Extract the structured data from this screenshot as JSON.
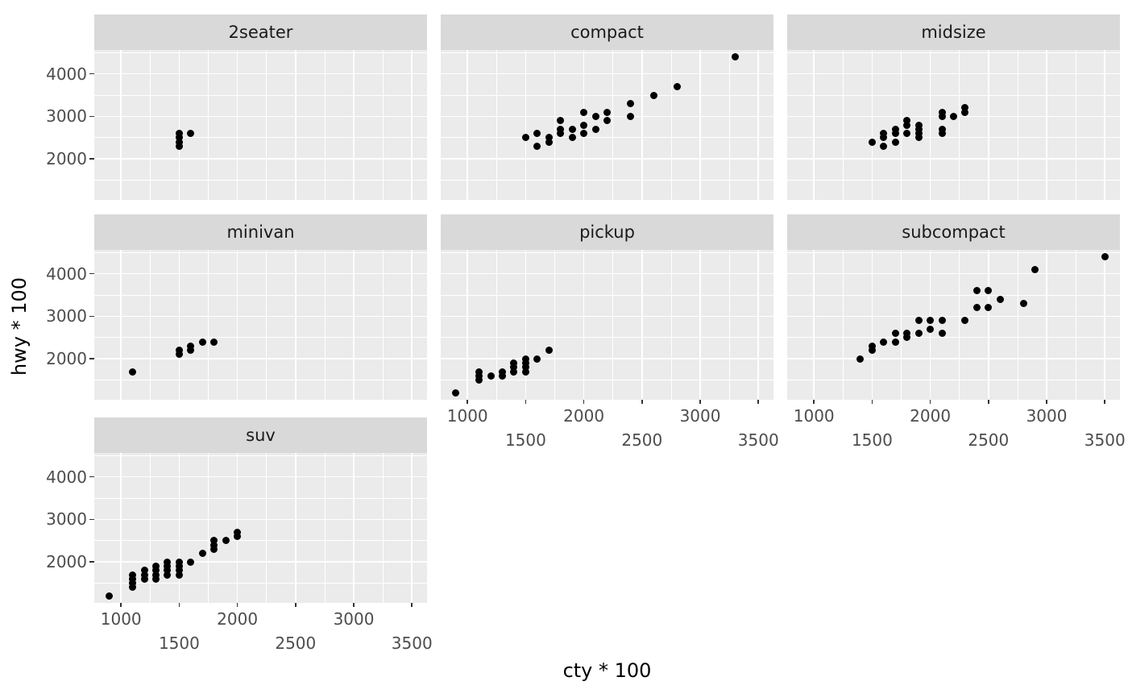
{
  "chart_data": {
    "type": "scatter",
    "title": "",
    "xlabel": "cty * 100",
    "ylabel": "hwy * 100",
    "x_ticks": [
      1000,
      1500,
      2000,
      2500,
      3000,
      3500
    ],
    "x_tick_row1": [
      1000,
      2000,
      3000
    ],
    "x_tick_row2": [
      1500,
      2500,
      3500
    ],
    "y_ticks": [
      2000,
      3000,
      4000
    ],
    "x_minor": [
      1250,
      1750,
      2250,
      2750,
      3250
    ],
    "y_minor": [
      1500,
      2500,
      3500,
      4500
    ],
    "xlim": [
      770,
      3630
    ],
    "ylim": [
      1040,
      4560
    ],
    "grid": true,
    "legend": "none",
    "colors": {
      "point": "#000000",
      "panel_bg": "#ebebeb",
      "strip_bg": "#d9d9d9",
      "grid_line": "#ffffff",
      "tick_mark": "#333333",
      "tick_label": "#4d4d4d",
      "strip_text": "#1a1a1a",
      "axis_title": "#000000"
    },
    "facets": [
      {
        "label": "2seater",
        "col": 0,
        "row": 0,
        "x_axis": false,
        "points": [
          [
            1500,
            2300
          ],
          [
            1500,
            2400
          ],
          [
            1500,
            2500
          ],
          [
            1500,
            2600
          ],
          [
            1600,
            2600
          ]
        ]
      },
      {
        "label": "compact",
        "col": 1,
        "row": 0,
        "x_axis": false,
        "points": [
          [
            1500,
            2500
          ],
          [
            1600,
            2300
          ],
          [
            1600,
            2600
          ],
          [
            1700,
            2400
          ],
          [
            1700,
            2500
          ],
          [
            1800,
            2600
          ],
          [
            1800,
            2700
          ],
          [
            1800,
            2900
          ],
          [
            1900,
            2500
          ],
          [
            1900,
            2700
          ],
          [
            2000,
            2600
          ],
          [
            2000,
            2800
          ],
          [
            2000,
            3100
          ],
          [
            2100,
            2700
          ],
          [
            2100,
            3000
          ],
          [
            2200,
            2900
          ],
          [
            2200,
            3100
          ],
          [
            2400,
            3000
          ],
          [
            2400,
            3300
          ],
          [
            2600,
            3500
          ],
          [
            2800,
            3700
          ],
          [
            3300,
            4400
          ]
        ]
      },
      {
        "label": "midsize",
        "col": 2,
        "row": 0,
        "x_axis": false,
        "points": [
          [
            1500,
            2400
          ],
          [
            1600,
            2300
          ],
          [
            1600,
            2500
          ],
          [
            1600,
            2600
          ],
          [
            1700,
            2400
          ],
          [
            1700,
            2600
          ],
          [
            1700,
            2700
          ],
          [
            1800,
            2600
          ],
          [
            1800,
            2800
          ],
          [
            1800,
            2900
          ],
          [
            1900,
            2500
          ],
          [
            1900,
            2600
          ],
          [
            1900,
            2700
          ],
          [
            1900,
            2800
          ],
          [
            2100,
            2600
          ],
          [
            2100,
            2700
          ],
          [
            2100,
            3000
          ],
          [
            2100,
            3100
          ],
          [
            2200,
            3000
          ],
          [
            2300,
            3100
          ],
          [
            2300,
            3200
          ]
        ]
      },
      {
        "label": "minivan",
        "col": 0,
        "row": 1,
        "x_axis": false,
        "points": [
          [
            1100,
            1700
          ],
          [
            1500,
            2100
          ],
          [
            1500,
            2200
          ],
          [
            1600,
            2200
          ],
          [
            1600,
            2300
          ],
          [
            1700,
            2400
          ],
          [
            1800,
            2400
          ]
        ]
      },
      {
        "label": "pickup",
        "col": 1,
        "row": 1,
        "x_axis": true,
        "points": [
          [
            900,
            1200
          ],
          [
            1100,
            1500
          ],
          [
            1100,
            1600
          ],
          [
            1100,
            1700
          ],
          [
            1200,
            1600
          ],
          [
            1300,
            1600
          ],
          [
            1300,
            1700
          ],
          [
            1400,
            1700
          ],
          [
            1400,
            1800
          ],
          [
            1400,
            1900
          ],
          [
            1500,
            1700
          ],
          [
            1500,
            1800
          ],
          [
            1500,
            1900
          ],
          [
            1500,
            2000
          ],
          [
            1600,
            2000
          ],
          [
            1700,
            2200
          ]
        ]
      },
      {
        "label": "subcompact",
        "col": 2,
        "row": 1,
        "x_axis": true,
        "points": [
          [
            1400,
            2000
          ],
          [
            1500,
            2200
          ],
          [
            1500,
            2300
          ],
          [
            1600,
            2400
          ],
          [
            1700,
            2400
          ],
          [
            1700,
            2600
          ],
          [
            1800,
            2500
          ],
          [
            1800,
            2600
          ],
          [
            1900,
            2600
          ],
          [
            1900,
            2900
          ],
          [
            2000,
            2700
          ],
          [
            2000,
            2900
          ],
          [
            2100,
            2600
          ],
          [
            2100,
            2900
          ],
          [
            2300,
            2900
          ],
          [
            2400,
            3200
          ],
          [
            2400,
            3600
          ],
          [
            2500,
            3200
          ],
          [
            2500,
            3600
          ],
          [
            2600,
            3400
          ],
          [
            2800,
            3300
          ],
          [
            2900,
            4100
          ],
          [
            3500,
            4400
          ]
        ]
      },
      {
        "label": "suv",
        "col": 0,
        "row": 2,
        "x_axis": true,
        "points": [
          [
            900,
            1200
          ],
          [
            1100,
            1400
          ],
          [
            1100,
            1500
          ],
          [
            1100,
            1600
          ],
          [
            1100,
            1700
          ],
          [
            1200,
            1600
          ],
          [
            1200,
            1700
          ],
          [
            1200,
            1800
          ],
          [
            1300,
            1600
          ],
          [
            1300,
            1700
          ],
          [
            1300,
            1800
          ],
          [
            1300,
            1900
          ],
          [
            1400,
            1700
          ],
          [
            1400,
            1800
          ],
          [
            1400,
            1900
          ],
          [
            1400,
            2000
          ],
          [
            1500,
            1700
          ],
          [
            1500,
            1800
          ],
          [
            1500,
            1900
          ],
          [
            1500,
            2000
          ],
          [
            1600,
            2000
          ],
          [
            1700,
            2200
          ],
          [
            1800,
            2300
          ],
          [
            1800,
            2400
          ],
          [
            1800,
            2500
          ],
          [
            1900,
            2500
          ],
          [
            2000,
            2600
          ],
          [
            2000,
            2700
          ]
        ]
      }
    ],
    "y_axis_rows": [
      0,
      1,
      2
    ]
  }
}
